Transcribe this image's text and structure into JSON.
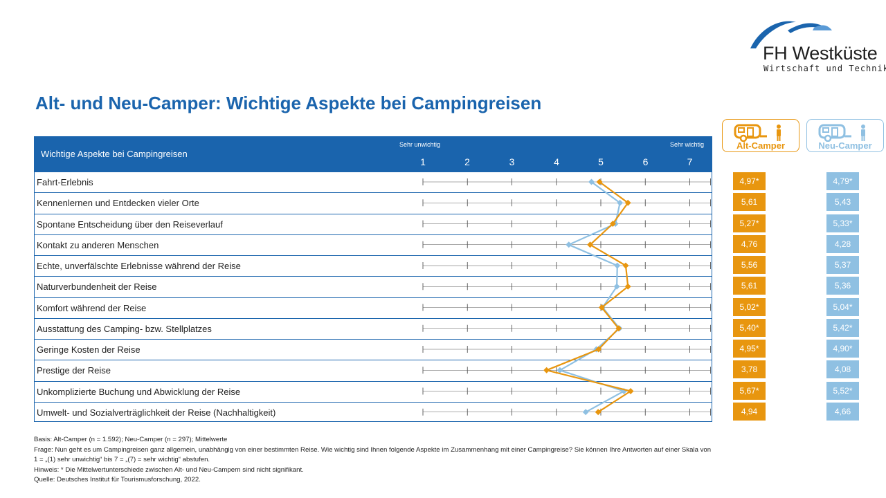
{
  "logo": {
    "name": "FH Westküste",
    "subtitle": "Wirtschaft und Technik"
  },
  "title": "Alt- und Neu-Camper: Wichtige Aspekte bei Campingreisen",
  "table": {
    "header_label": "Wichtige Aspekte bei Campingreisen",
    "scale_low": "Sehr unwichtig",
    "scale_high": "Sehr wichtig",
    "scale": [
      "1",
      "2",
      "3",
      "4",
      "5",
      "6",
      "7"
    ]
  },
  "legend": {
    "alt": {
      "label": "Alt-Camper",
      "color": "#e8960f",
      "icon": "caravan-person-icon"
    },
    "neu": {
      "label": "Neu-Camper",
      "color": "#8fc0e2",
      "icon": "caravan-person-icon"
    }
  },
  "chart_data": {
    "type": "line",
    "categories": [
      "Fahrt-Erlebnis",
      "Kennenlernen und Entdecken vieler Orte",
      "Spontane Entscheidung über den Reiseverlauf",
      "Kontakt zu anderen Menschen",
      "Echte, unverfälschte Erlebnisse während der Reise",
      "Naturverbundenheit der Reise",
      "Komfort während der Reise",
      "Ausstattung des Camping- bzw. Stellplatzes",
      "Geringe Kosten der Reise",
      "Prestige der Reise",
      "Unkomplizierte Buchung und Abwicklung der Reise",
      "Umwelt- und Sozialverträglichkeit der Reise (Nachhaltigkeit)"
    ],
    "xlim": [
      1,
      7
    ],
    "series": [
      {
        "name": "Alt-Camper",
        "color": "#e8960f",
        "values": [
          4.97,
          5.61,
          5.27,
          4.76,
          5.56,
          5.61,
          5.02,
          5.4,
          4.95,
          3.78,
          5.67,
          4.94
        ],
        "labels": [
          "4,97*",
          "5,61",
          "5,27*",
          "4,76",
          "5,56",
          "5,61",
          "5,02*",
          "5,40*",
          "4,95*",
          "3,78",
          "5,67*",
          "4,94"
        ]
      },
      {
        "name": "Neu-Camper",
        "color": "#8fc0e2",
        "values": [
          4.79,
          5.43,
          5.33,
          4.28,
          5.37,
          5.36,
          5.04,
          5.42,
          4.9,
          4.08,
          5.52,
          4.66
        ],
        "labels": [
          "4,79*",
          "5,43",
          "5,33*",
          "4,28",
          "5,37",
          "5,36",
          "5,04*",
          "5,42*",
          "4,90*",
          "4,08",
          "5,52*",
          "4,66"
        ]
      }
    ]
  },
  "footnotes": [
    "Basis: Alt-Camper (n = 1.592); Neu-Camper (n = 297); Mittelwerte",
    "Frage: Nun geht es um Campingreisen ganz allgemein, unabhängig von einer bestimmten Reise. Wie wichtig sind Ihnen folgende Aspekte im Zusammenhang mit einer Campingreise? Sie können Ihre Antworten auf einer Skala von",
    "1 = „(1) sehr unwichtig“ bis 7 = „(7) = sehr wichtig“ abstufen.",
    "Hinweis: * Die Mittelwertunterschiede zwischen Alt- und Neu-Campern sind nicht signifikant.",
    "Quelle: Deutsches Institut für Tourismusforschung, 2022."
  ]
}
